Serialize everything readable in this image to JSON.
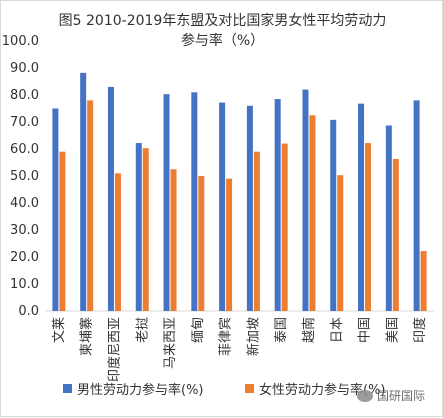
{
  "chart_data": {
    "type": "bar",
    "title_line1": "图5 2010-2019年东盟及对比国家男女性平均劳动力",
    "title_line2": "参与率（%）",
    "categories": [
      "文莱",
      "柬埔寨",
      "印度尼西亚",
      "老挝",
      "马来西亚",
      "缅甸",
      "菲律宾",
      "新加坡",
      "泰国",
      "越南",
      "日本",
      "中国",
      "美国",
      "印度"
    ],
    "series": [
      {
        "name": "男性劳动力参与率(%)",
        "color": "#4472c4",
        "values": [
          75.0,
          88.2,
          83.0,
          62.2,
          80.3,
          81.0,
          77.2,
          76.0,
          78.5,
          82.0,
          70.8,
          76.8,
          68.7,
          78.0
        ]
      },
      {
        "name": "女性劳动力参与率(%)",
        "color": "#ed7d31",
        "values": [
          59.0,
          78.0,
          51.0,
          60.3,
          52.5,
          50.0,
          49.0,
          59.0,
          62.0,
          72.5,
          50.3,
          62.2,
          56.3,
          22.2
        ]
      }
    ],
    "ylim": [
      0,
      100
    ],
    "yticks": [
      "0.0",
      "10.0",
      "20.0",
      "30.0",
      "40.0",
      "50.0",
      "60.0",
      "70.0",
      "80.0",
      "90.0",
      "100.0"
    ],
    "grid": false,
    "legend_position": "bottom"
  },
  "watermark": "国研国际"
}
